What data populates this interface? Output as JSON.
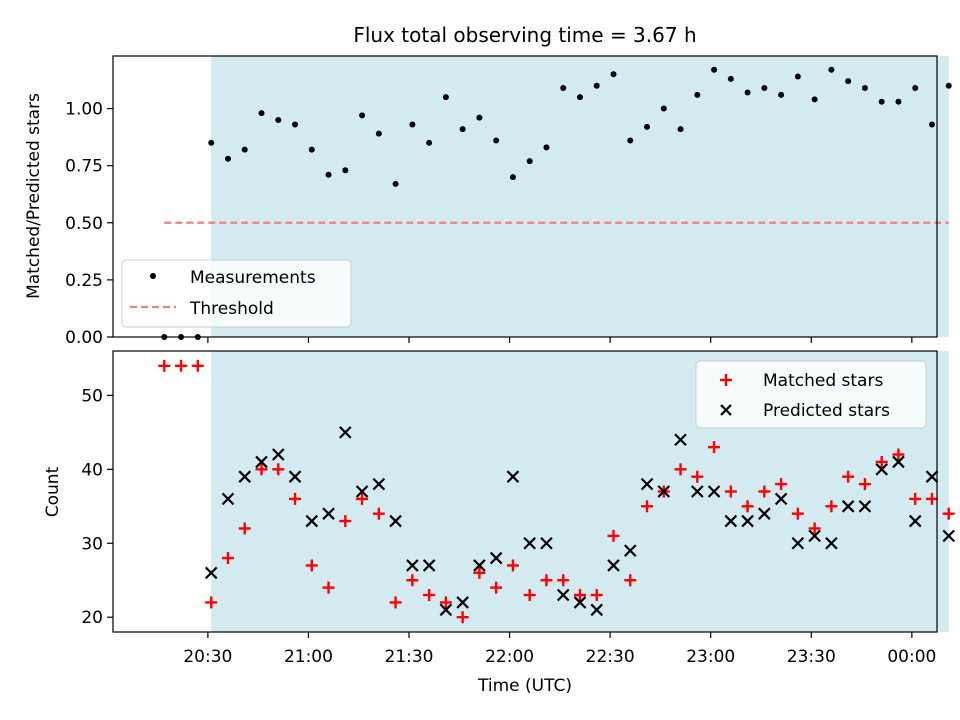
{
  "chart_data": [
    {
      "type": "scatter",
      "title": "Flux total observing time = 3.67 h",
      "xlabel": "",
      "ylabel": "Matched/Predicted stars",
      "ylim": [
        0,
        1.23
      ],
      "yticks": [
        "0.00",
        "0.25",
        "0.50",
        "0.75",
        "1.00"
      ],
      "grid": false,
      "legend_placement": "lower-left",
      "shaded_interval": [
        "20:31",
        "00:11"
      ],
      "shaded_color": "#d3eaf0",
      "series": [
        {
          "name": "Measurements",
          "marker": "dot",
          "color": "#000000",
          "x": [
            "20:17",
            "20:22",
            "20:27",
            "20:31",
            "20:36",
            "20:41",
            "20:46",
            "20:51",
            "20:56",
            "21:01",
            "21:06",
            "21:11",
            "21:16",
            "21:21",
            "21:26",
            "21:31",
            "21:36",
            "21:41",
            "21:46",
            "21:51",
            "21:56",
            "22:01",
            "22:06",
            "22:11",
            "22:16",
            "22:21",
            "22:26",
            "22:31",
            "22:36",
            "22:41",
            "22:46",
            "22:51",
            "22:56",
            "23:01",
            "23:06",
            "23:11",
            "23:16",
            "23:21",
            "23:26",
            "23:31",
            "23:36",
            "23:41",
            "23:46",
            "23:51",
            "23:56",
            "00:01",
            "00:06",
            "00:11"
          ],
          "y": [
            0,
            0,
            0,
            0.85,
            0.78,
            0.82,
            0.98,
            0.95,
            0.93,
            0.82,
            0.71,
            0.73,
            0.97,
            0.89,
            0.67,
            0.93,
            0.85,
            1.05,
            0.91,
            0.96,
            0.86,
            0.7,
            0.77,
            0.83,
            1.09,
            1.05,
            1.1,
            1.15,
            0.86,
            0.92,
            1.0,
            0.91,
            1.06,
            1.17,
            1.13,
            1.07,
            1.09,
            1.06,
            1.14,
            1.04,
            1.17,
            1.12,
            1.09,
            1.03,
            1.03,
            1.09,
            0.93,
            1.1
          ]
        },
        {
          "name": "Threshold",
          "marker": "dashed-line",
          "color": "#f08080",
          "x": [
            "20:17",
            "00:11"
          ],
          "y": [
            0.5,
            0.5
          ]
        }
      ]
    },
    {
      "type": "scatter",
      "title": "",
      "xlabel": "Time (UTC)",
      "ylabel": "Count",
      "ylim": [
        18,
        56
      ],
      "yticks": [
        "20",
        "30",
        "40",
        "50"
      ],
      "xticks": [
        "20:30",
        "21:00",
        "21:30",
        "22:00",
        "22:30",
        "23:00",
        "23:30",
        "00:00"
      ],
      "grid": false,
      "legend_placement": "upper-right",
      "shaded_interval": [
        "20:31",
        "00:11"
      ],
      "shaded_color": "#d3eaf0",
      "series": [
        {
          "name": "Matched stars",
          "marker": "plus",
          "color": "#ff0000",
          "x": [
            "20:17",
            "20:22",
            "20:27",
            "20:31",
            "20:36",
            "20:41",
            "20:46",
            "20:51",
            "20:56",
            "21:01",
            "21:06",
            "21:11",
            "21:16",
            "21:21",
            "21:26",
            "21:31",
            "21:36",
            "21:41",
            "21:46",
            "21:51",
            "21:56",
            "22:01",
            "22:06",
            "22:11",
            "22:16",
            "22:21",
            "22:26",
            "22:31",
            "22:36",
            "22:41",
            "22:46",
            "22:51",
            "22:56",
            "23:01",
            "23:06",
            "23:11",
            "23:16",
            "23:21",
            "23:26",
            "23:31",
            "23:36",
            "23:41",
            "23:46",
            "23:51",
            "23:56",
            "00:01",
            "00:06",
            "00:11"
          ],
          "y": [
            54,
            54,
            54,
            22,
            28,
            32,
            40,
            40,
            36,
            27,
            24,
            33,
            36,
            34,
            22,
            25,
            23,
            22,
            20,
            26,
            24,
            27,
            23,
            25,
            25,
            23,
            23,
            31,
            25,
            35,
            37,
            40,
            39,
            43,
            37,
            35,
            37,
            38,
            34,
            32,
            35,
            39,
            38,
            41,
            42,
            36,
            36,
            34
          ]
        },
        {
          "name": "Predicted stars",
          "marker": "x",
          "color": "#000000",
          "x": [
            "20:31",
            "20:36",
            "20:41",
            "20:46",
            "20:51",
            "20:56",
            "21:01",
            "21:06",
            "21:11",
            "21:16",
            "21:21",
            "21:26",
            "21:31",
            "21:36",
            "21:41",
            "21:46",
            "21:51",
            "21:56",
            "22:01",
            "22:06",
            "22:11",
            "22:16",
            "22:21",
            "22:26",
            "22:31",
            "22:36",
            "22:41",
            "22:46",
            "22:51",
            "22:56",
            "23:01",
            "23:06",
            "23:11",
            "23:16",
            "23:21",
            "23:26",
            "23:31",
            "23:36",
            "23:41",
            "23:46",
            "23:51",
            "23:56",
            "00:01",
            "00:06",
            "00:11"
          ],
          "y": [
            26,
            36,
            39,
            41,
            42,
            39,
            33,
            34,
            45,
            37,
            38,
            33,
            27,
            27,
            21,
            22,
            27,
            28,
            39,
            30,
            30,
            23,
            22,
            21,
            27,
            29,
            38,
            37,
            44,
            37,
            37,
            33,
            33,
            34,
            36,
            30,
            31,
            30,
            35,
            35,
            40,
            41,
            33,
            39,
            31
          ]
        }
      ]
    }
  ]
}
